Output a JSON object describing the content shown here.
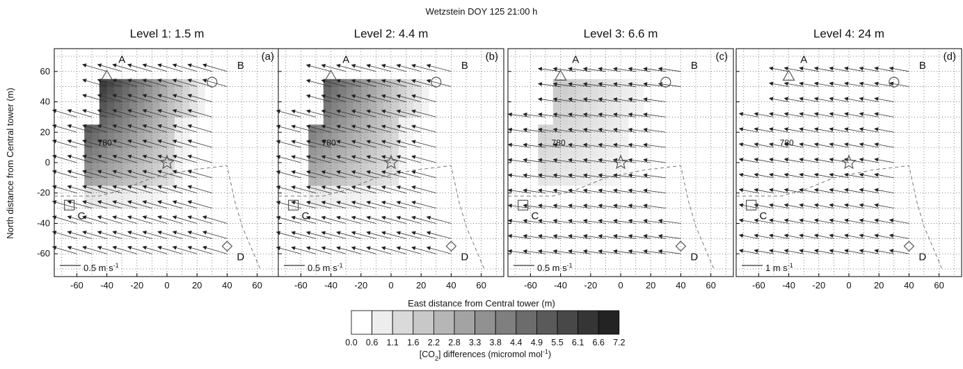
{
  "chart_data": {
    "type": "heatmap",
    "suptitle": "Wetzstein DOY 125 21:00 h",
    "xlabel": "East distance from Central tower (m)",
    "ylabel": "North distance from Central tower (m)",
    "xlim": [
      -75,
      75
    ],
    "ylim": [
      -75,
      75
    ],
    "xticks": [
      -60,
      -40,
      -20,
      0,
      20,
      40,
      60
    ],
    "yticks": [
      -60,
      -40,
      -20,
      0,
      20,
      40,
      60
    ],
    "grid": true,
    "gridline_spacing": 10,
    "colorbar": {
      "label_main": "[CO",
      "label_sub": "2",
      "label_mid": "] differences (micromol mol",
      "label_sup": "-1",
      "label_end": ")",
      "ticks": [
        "0.0",
        "0.6",
        "1.1",
        "1.6",
        "2.2",
        "2.8",
        "3.3",
        "3.8",
        "4.4",
        "4.9",
        "5.5",
        "6.1",
        "6.6",
        "7.2"
      ]
    },
    "sites": [
      {
        "label": "A",
        "marker": "triangle",
        "x": -40,
        "y": 57
      },
      {
        "label": "B",
        "marker": "circle",
        "x": 30,
        "y": 53
      },
      {
        "label": "C",
        "marker": "square",
        "x": -65,
        "y": -28
      },
      {
        "label": "D",
        "marker": "diamond",
        "x": 40,
        "y": -55
      },
      {
        "label": "",
        "marker": "star",
        "x": 0,
        "y": 0
      }
    ],
    "site_labels": [
      {
        "text": "A",
        "x": -30,
        "y": 68
      },
      {
        "text": "B",
        "x": 49,
        "y": 64
      },
      {
        "text": "C",
        "x": -57,
        "y": -35
      },
      {
        "text": "D",
        "x": 49,
        "y": -62
      }
    ],
    "contour_label": {
      "text": "780",
      "x": -46,
      "y": 13
    },
    "panels": [
      {
        "id": "a",
        "tag": "(a)",
        "title": "Level 1: 1.5 m",
        "field_scale": 1.0,
        "wind": {
          "u": -0.45,
          "v": 0.13,
          "vector_scale": 36
        },
        "scale_label": "0.5 m s",
        "scale_sup": "-1"
      },
      {
        "id": "b",
        "tag": "(b)",
        "title": "Level 2: 4.4 m",
        "field_scale": 0.8,
        "wind": {
          "u": -0.45,
          "v": 0.12,
          "vector_scale": 36
        },
        "scale_label": "0.5 m s",
        "scale_sup": "-1"
      },
      {
        "id": "c",
        "tag": "(c)",
        "title": "Level 3: 6.6 m",
        "field_scale": 0.28,
        "wind": {
          "u": -0.45,
          "v": 0.06,
          "vector_scale": 32
        },
        "scale_label": "0.5 m s",
        "scale_sup": "-1"
      },
      {
        "id": "d",
        "tag": "(d)",
        "title": "Level 4: 24 m",
        "field_scale": 0.0,
        "wind": {
          "u": -1.2,
          "v": 0.22,
          "vector_scale": 36
        },
        "scale_label": "1 m s",
        "scale_sup": "-1"
      }
    ]
  }
}
